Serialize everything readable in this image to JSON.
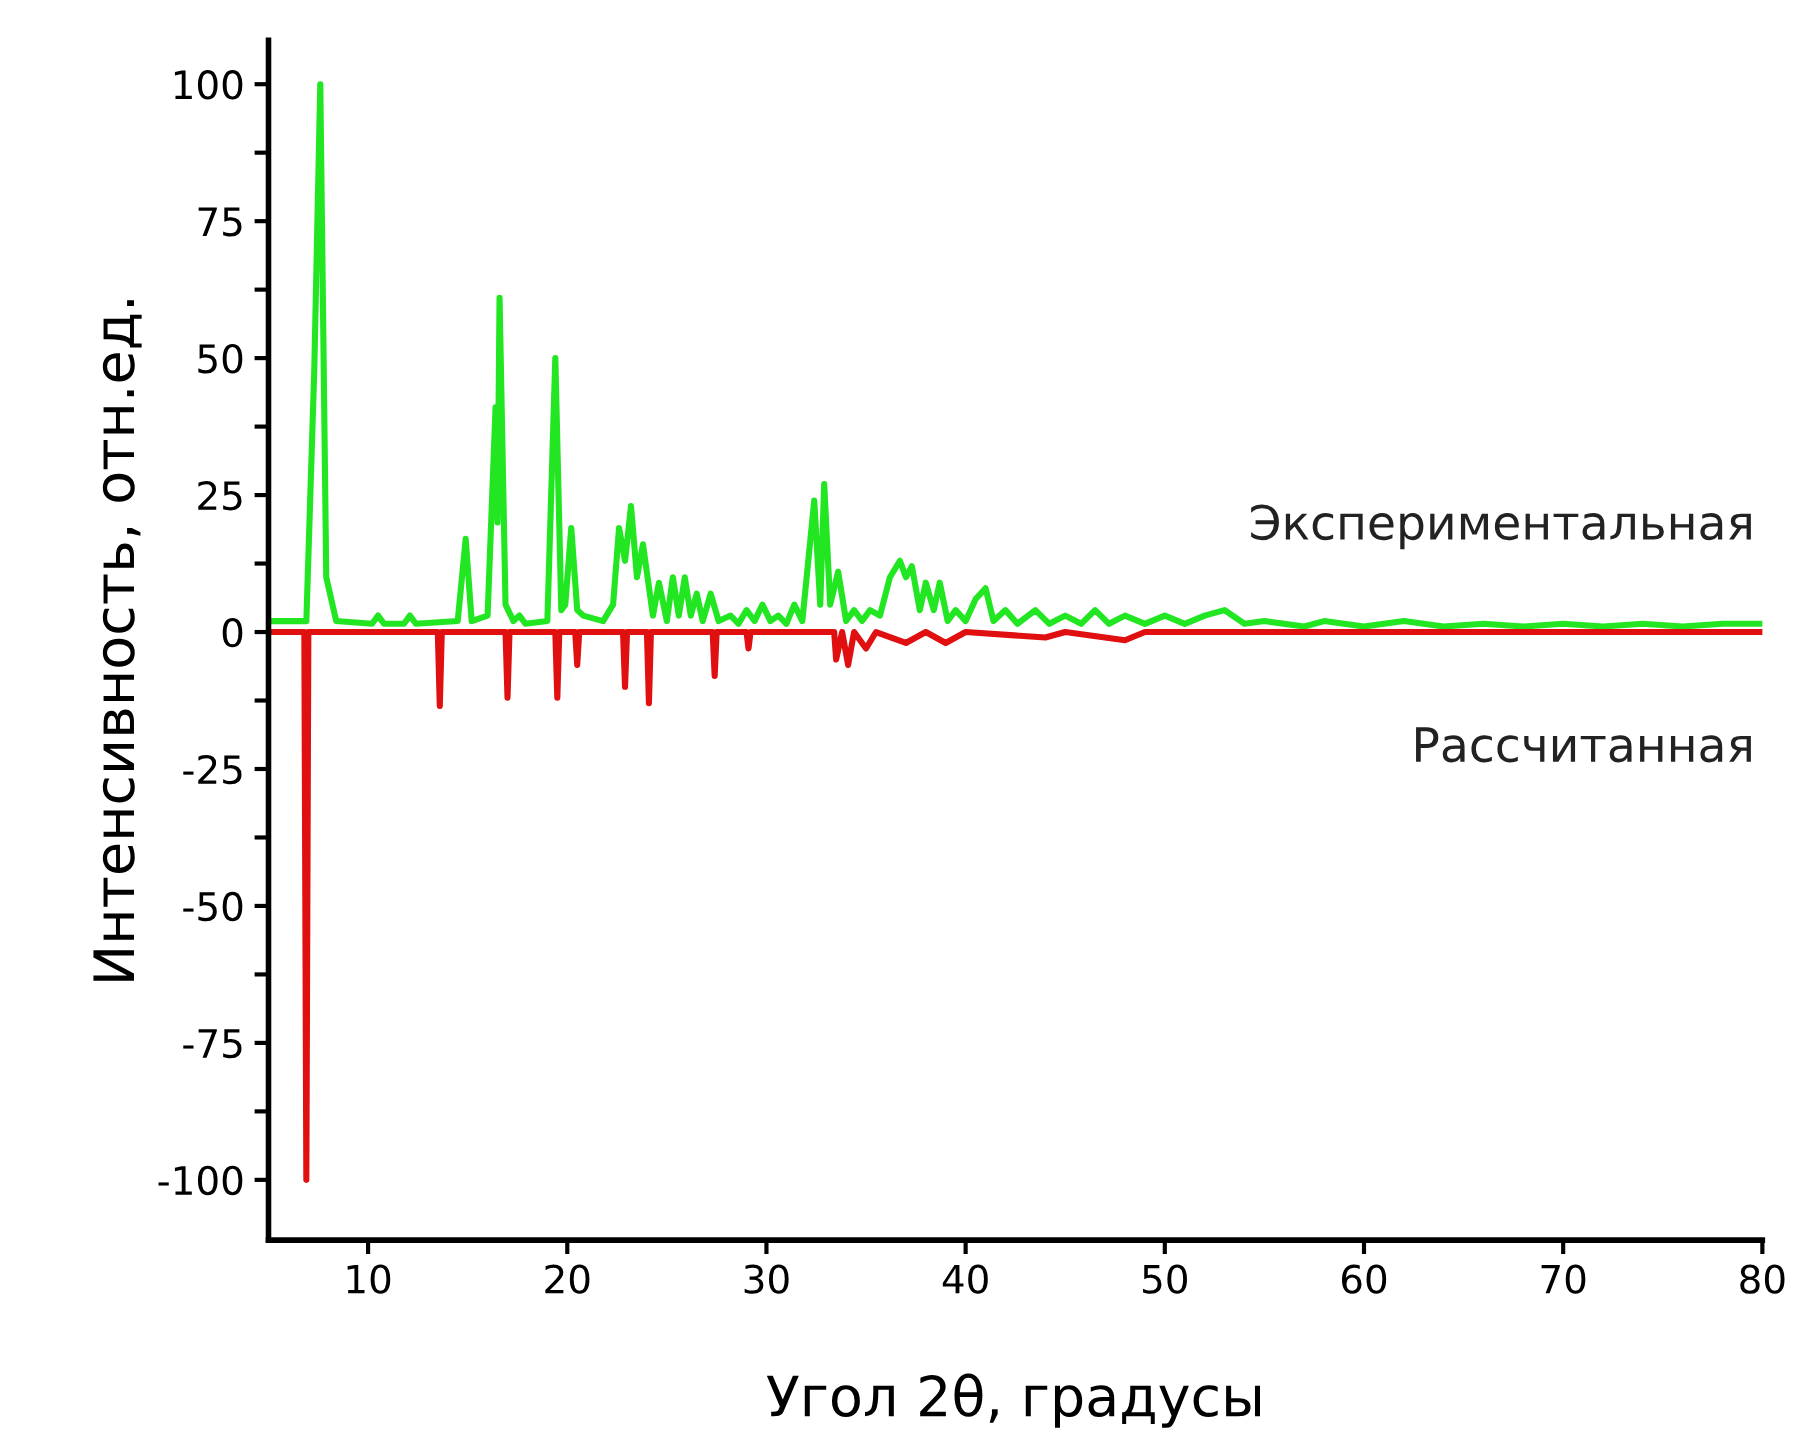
{
  "chart_data": {
    "type": "line",
    "xlabel": "Угол 2θ, градусы",
    "ylabel": "Интенсивность, отн.ед.",
    "xlim": [
      5,
      80
    ],
    "xticks": [
      10,
      20,
      30,
      40,
      50,
      60,
      70,
      80
    ],
    "ylim": [
      -111,
      108
    ],
    "yticks": [
      -100,
      {
        "value": -87.5,
        "label": null
      },
      -75,
      {
        "value": -62.5,
        "label": null
      },
      -50,
      {
        "value": -37.5,
        "label": null
      },
      -25,
      {
        "value": -12.5,
        "label": null
      },
      0,
      {
        "value": 12.5,
        "label": null
      },
      25,
      {
        "value": 37.5,
        "label": null
      },
      50,
      {
        "value": 62.5,
        "label": null
      },
      75,
      {
        "value": 87.5,
        "label": null
      },
      100
    ],
    "grid": false,
    "legend": false,
    "series": [
      {
        "name": "Экспериментальная",
        "color": "#22e622",
        "x": [
          5.2,
          6.9,
          7.3,
          7.6,
          7.9,
          8.4,
          10.2,
          10.5,
          10.8,
          11.8,
          12.1,
          12.4,
          14.5,
          14.9,
          15.2,
          16.0,
          16.4,
          16.5,
          16.6,
          16.9,
          17.3,
          17.6,
          17.9,
          19.0,
          19.4,
          19.7,
          19.9,
          20.2,
          20.5,
          20.8,
          21.8,
          22.3,
          22.6,
          22.9,
          23.2,
          23.5,
          23.8,
          24.3,
          24.6,
          25.0,
          25.3,
          25.6,
          25.9,
          26.2,
          26.5,
          26.8,
          27.2,
          27.6,
          28.2,
          28.6,
          29.0,
          29.4,
          29.8,
          30.2,
          30.6,
          31.0,
          31.4,
          31.8,
          32.4,
          32.7,
          32.9,
          33.2,
          33.6,
          34.0,
          34.4,
          34.8,
          35.2,
          35.7,
          36.2,
          36.7,
          37.0,
          37.3,
          37.7,
          38.0,
          38.4,
          38.7,
          39.1,
          39.5,
          40.0,
          40.5,
          41.0,
          41.4,
          42.0,
          42.6,
          43.5,
          44.2,
          45.0,
          45.8,
          46.5,
          47.2,
          48.0,
          49.0,
          50.0,
          51.0,
          52.0,
          53.0,
          54.0,
          55.0,
          57.0,
          58.0,
          60.0,
          62.0,
          64.0,
          66.0,
          68.0,
          70.0,
          72.0,
          74.0,
          76.0,
          78.0,
          80.0
        ],
        "values": [
          2,
          2,
          48,
          100,
          10,
          2,
          1.5,
          3,
          1.5,
          1.5,
          3,
          1.5,
          2,
          17,
          2,
          3,
          41,
          20,
          61,
          5,
          2,
          3,
          1.5,
          2,
          50,
          4,
          5,
          19,
          4,
          3,
          2,
          5,
          19,
          13,
          23,
          10,
          16,
          3,
          9,
          2,
          10,
          3,
          10,
          3,
          7,
          2,
          7,
          2,
          3,
          1.5,
          4,
          2,
          5,
          2,
          3,
          1.5,
          5,
          2,
          24,
          5,
          27,
          5,
          11,
          2,
          4,
          2,
          4,
          3,
          10,
          13,
          10,
          12,
          4,
          9,
          4,
          9,
          2,
          4,
          2,
          6,
          8,
          2,
          4,
          1.5,
          4,
          1.5,
          3,
          1.5,
          4,
          1.5,
          3,
          1.5,
          3,
          1.5,
          3,
          4,
          1.5,
          2,
          1,
          2,
          1,
          2,
          1,
          1.5,
          1,
          1.5,
          1,
          1.5,
          1,
          1.5,
          1.5
        ]
      },
      {
        "name": "Рассчитанная",
        "color": "#e01010",
        "x": [
          5.2,
          6.8,
          6.9,
          7.0,
          13.5,
          13.6,
          13.7,
          16.9,
          17.0,
          17.1,
          19.4,
          19.5,
          19.6,
          20.4,
          20.5,
          20.6,
          22.8,
          22.9,
          23.0,
          24.0,
          24.1,
          24.2,
          27.3,
          27.4,
          27.5,
          29.0,
          29.1,
          29.2,
          33.4,
          33.5,
          33.8,
          34.1,
          34.4,
          35.0,
          35.5,
          37.0,
          38.0,
          39.0,
          40.0,
          44.0,
          45.0,
          48.0,
          49.0,
          80.0
        ],
        "values": [
          0,
          0,
          -100,
          0,
          0,
          -13.5,
          0,
          0,
          -12,
          0,
          0,
          -12,
          0,
          0,
          -6,
          0,
          0,
          -10,
          0,
          0,
          -13,
          0,
          0,
          -8,
          0,
          0,
          -3,
          0,
          0,
          -5,
          0,
          -6,
          0,
          -3,
          0,
          -2,
          0,
          -2,
          0,
          -1,
          0,
          -1.5,
          0,
          0
        ]
      }
    ]
  }
}
